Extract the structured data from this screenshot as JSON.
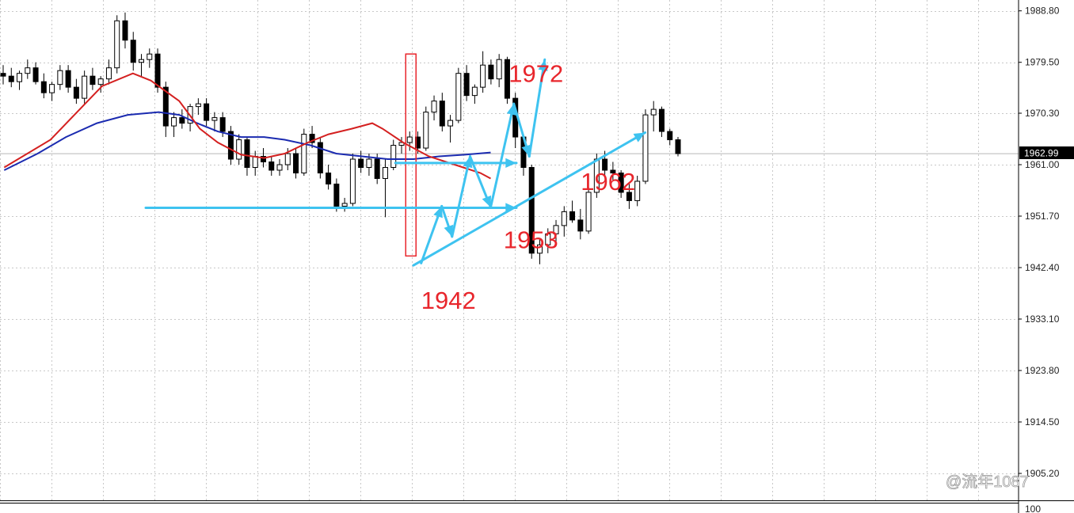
{
  "chart_data": {
    "type": "candlestick",
    "ylim": [
      1886,
      1993
    ],
    "y_ticks": [
      "1988.80",
      "1979.50",
      "1970.30",
      "1961.00",
      "1951.70",
      "1942.40",
      "1933.10",
      "1923.80",
      "1914.50",
      "1905.20"
    ],
    "current_price": "1962.99",
    "sub_panel_label": "100",
    "grid": true,
    "colors": {
      "candle": "#000000",
      "ma_fast": "#d42020",
      "ma_slow": "#1b2bb0",
      "annotation_line": "#3ec3f0",
      "annotation_text": "#e8262c",
      "box": "#e8262c",
      "grid": "#c8c8c8",
      "price_tag": "#000000"
    },
    "candles": [
      [
        1977.5,
        1979.0,
        1975.5,
        1977.0
      ],
      [
        1977.0,
        1978.5,
        1975.0,
        1976.0
      ],
      [
        1976.0,
        1978.0,
        1974.5,
        1977.5
      ],
      [
        1977.5,
        1980.0,
        1976.5,
        1978.5
      ],
      [
        1978.5,
        1979.5,
        1975.5,
        1976.0
      ],
      [
        1976.0,
        1977.5,
        1973.0,
        1974.0
      ],
      [
        1974.0,
        1976.0,
        1972.5,
        1975.5
      ],
      [
        1975.5,
        1979.0,
        1974.5,
        1978.0
      ],
      [
        1978.0,
        1979.0,
        1974.0,
        1975.0
      ],
      [
        1975.0,
        1976.5,
        1972.0,
        1973.0
      ],
      [
        1973.0,
        1978.0,
        1972.0,
        1977.0
      ],
      [
        1977.0,
        1978.5,
        1974.5,
        1975.5
      ],
      [
        1975.5,
        1977.0,
        1974.0,
        1976.5
      ],
      [
        1976.5,
        1980.0,
        1975.5,
        1978.5
      ],
      [
        1978.5,
        1988.0,
        1977.5,
        1987.0
      ],
      [
        1987.0,
        1988.5,
        1982.0,
        1983.5
      ],
      [
        1983.5,
        1985.0,
        1978.0,
        1979.5
      ],
      [
        1979.5,
        1981.0,
        1977.0,
        1980.0
      ],
      [
        1980.0,
        1982.0,
        1978.5,
        1981.0
      ],
      [
        1981.0,
        1982.0,
        1974.0,
        1975.0
      ],
      [
        1975.0,
        1976.0,
        1966.0,
        1968.0
      ],
      [
        1968.0,
        1970.5,
        1966.0,
        1969.5
      ],
      [
        1969.5,
        1971.0,
        1967.5,
        1968.5
      ],
      [
        1968.5,
        1972.0,
        1967.0,
        1971.5
      ],
      [
        1971.5,
        1973.0,
        1970.0,
        1972.0
      ],
      [
        1972.0,
        1973.0,
        1968.0,
        1969.0
      ],
      [
        1969.0,
        1970.5,
        1967.0,
        1969.5
      ],
      [
        1969.5,
        1970.5,
        1966.0,
        1967.0
      ],
      [
        1967.0,
        1968.0,
        1961.0,
        1962.0
      ],
      [
        1962.0,
        1966.5,
        1961.0,
        1965.5
      ],
      [
        1965.5,
        1966.0,
        1959.0,
        1960.5
      ],
      [
        1960.5,
        1963.5,
        1959.0,
        1962.5
      ],
      [
        1962.5,
        1964.0,
        1960.5,
        1961.5
      ],
      [
        1961.5,
        1962.5,
        1959.0,
        1960.0
      ],
      [
        1960.0,
        1962.0,
        1959.0,
        1961.0
      ],
      [
        1961.0,
        1964.0,
        1960.0,
        1963.0
      ],
      [
        1963.0,
        1964.0,
        1958.5,
        1959.5
      ],
      [
        1959.5,
        1967.5,
        1959.0,
        1966.5
      ],
      [
        1966.5,
        1968.0,
        1964.0,
        1965.0
      ],
      [
        1965.0,
        1966.0,
        1958.5,
        1959.5
      ],
      [
        1959.5,
        1961.0,
        1956.5,
        1957.5
      ],
      [
        1957.5,
        1958.5,
        1952.5,
        1953.5
      ],
      [
        1953.5,
        1955.0,
        1952.5,
        1954.0
      ],
      [
        1954.0,
        1963.0,
        1953.5,
        1962.0
      ],
      [
        1962.0,
        1963.5,
        1959.5,
        1960.5
      ],
      [
        1960.5,
        1963.0,
        1959.0,
        1962.0
      ],
      [
        1962.0,
        1963.0,
        1957.5,
        1958.5
      ],
      [
        1958.5,
        1962.0,
        1951.5,
        1960.5
      ],
      [
        1960.5,
        1965.5,
        1960.0,
        1964.5
      ],
      [
        1964.5,
        1966.0,
        1963.0,
        1965.0
      ],
      [
        1965.0,
        1967.0,
        1963.5,
        1966.0
      ],
      [
        1966.0,
        1967.0,
        1963.0,
        1964.0
      ],
      [
        1964.0,
        1971.5,
        1963.5,
        1970.5
      ],
      [
        1970.5,
        1973.5,
        1969.0,
        1972.5
      ],
      [
        1972.5,
        1974.0,
        1967.0,
        1968.0
      ],
      [
        1968.0,
        1970.0,
        1965.0,
        1969.0
      ],
      [
        1969.0,
        1978.5,
        1968.5,
        1977.5
      ],
      [
        1977.5,
        1979.0,
        1972.5,
        1973.5
      ],
      [
        1973.5,
        1975.5,
        1972.0,
        1975.0
      ],
      [
        1975.0,
        1981.5,
        1974.0,
        1979.0
      ],
      [
        1979.0,
        1980.0,
        1975.5,
        1976.5
      ],
      [
        1976.5,
        1981.0,
        1975.0,
        1980.0
      ],
      [
        1980.0,
        1980.5,
        1972.0,
        1973.0
      ],
      [
        1973.0,
        1974.0,
        1964.0,
        1966.0
      ],
      [
        1966.0,
        1966.5,
        1959.0,
        1960.5
      ],
      [
        1960.5,
        1961.0,
        1944.0,
        1945.0
      ],
      [
        1945.0,
        1947.5,
        1943.0,
        1946.5
      ],
      [
        1946.5,
        1949.5,
        1945.0,
        1948.5
      ],
      [
        1948.5,
        1951.0,
        1946.5,
        1950.0
      ],
      [
        1950.0,
        1953.5,
        1948.0,
        1952.5
      ],
      [
        1952.5,
        1954.5,
        1950.5,
        1951.0
      ],
      [
        1951.0,
        1953.0,
        1947.5,
        1949.0
      ],
      [
        1949.0,
        1957.0,
        1948.5,
        1956.0
      ],
      [
        1956.0,
        1963.0,
        1955.0,
        1962.0
      ],
      [
        1962.0,
        1963.5,
        1959.0,
        1960.0
      ],
      [
        1960.0,
        1961.5,
        1958.0,
        1959.5
      ],
      [
        1959.5,
        1960.0,
        1955.0,
        1956.0
      ],
      [
        1956.0,
        1957.5,
        1953.0,
        1954.5
      ],
      [
        1954.5,
        1959.0,
        1953.5,
        1958.0
      ],
      [
        1958.0,
        1971.0,
        1957.5,
        1970.0
      ],
      [
        1970.0,
        1972.5,
        1967.0,
        1971.0
      ],
      [
        1971.0,
        1971.5,
        1966.0,
        1967.0
      ],
      [
        1967.0,
        1967.5,
        1964.5,
        1965.5
      ],
      [
        1965.5,
        1966.0,
        1962.5,
        1963.0
      ]
    ],
    "ma_fast": [
      [
        1958.5,
        1960.5
      ],
      [
        1967.5,
        1965.5
      ],
      [
        1977.5,
        1975.2
      ],
      [
        1983.5,
        1977.5
      ],
      [
        1987.0,
        1976.2
      ],
      [
        1992.5,
        1972.5
      ],
      [
        1996.5,
        1967.5
      ],
      [
        2000.0,
        1965.0
      ],
      [
        2004.5,
        1962.8
      ],
      [
        2009.0,
        1962.2
      ],
      [
        2013.0,
        1963.0
      ],
      [
        2017.5,
        1965.0
      ],
      [
        2021.5,
        1966.5
      ],
      [
        2026.0,
        1967.5
      ],
      [
        2030.0,
        1968.5
      ],
      [
        2032.0,
        1967.5
      ],
      [
        2036.0,
        1965.0
      ],
      [
        2041.0,
        1962.5
      ],
      [
        2046.0,
        1961.0
      ],
      [
        2051.0,
        1959.5
      ],
      [
        2053.0,
        1958.5
      ]
    ],
    "ma_slow": [
      [
        1958.5,
        1960.0
      ],
      [
        1965.0,
        1963.0
      ],
      [
        1970.5,
        1966.0
      ],
      [
        1976.5,
        1968.5
      ],
      [
        1982.5,
        1970.0
      ],
      [
        1988.5,
        1970.5
      ],
      [
        1992.5,
        1970.0
      ],
      [
        1996.0,
        1968.5
      ],
      [
        2000.0,
        1967.0
      ],
      [
        2004.5,
        1966.0
      ],
      [
        2009.0,
        1966.0
      ],
      [
        2013.0,
        1965.5
      ],
      [
        2018.0,
        1964.5
      ],
      [
        2023.0,
        1963.0
      ],
      [
        2028.0,
        1962.5
      ],
      [
        2033.0,
        1962.0
      ],
      [
        2038.0,
        1962.0
      ],
      [
        2043.0,
        1962.5
      ],
      [
        2048.0,
        1962.8
      ],
      [
        2053.0,
        1963.2
      ]
    ],
    "horizontal_levels": [
      {
        "price": 1953.2,
        "from": 1986.0,
        "to": 2058.0
      },
      {
        "price": 1961.3,
        "from": 2034.5,
        "to": 2058.0
      }
    ],
    "trendline": [
      [
        2038.0,
        1942.8
      ],
      [
        2083.0,
        1966.8
      ]
    ],
    "zigzag": [
      [
        2039.5,
        1943.2
      ],
      [
        2043.5,
        1953.5
      ],
      [
        2045.5,
        1948.0
      ],
      [
        2049.0,
        1962.5
      ],
      [
        2053.0,
        1953.3
      ],
      [
        2057.5,
        1972.0
      ],
      [
        2060.5,
        1962.5
      ],
      [
        2063.5,
        1980.0
      ]
    ],
    "highlight_box": {
      "t_from": 2036.5,
      "t_to": 2038.5,
      "price_low": 1944.5,
      "price_high": 1981.0
    },
    "annotations": [
      {
        "text": "1972",
        "t": 2056.5,
        "price": 1977.5
      },
      {
        "text": "1962",
        "t": 2070.5,
        "price": 1958.0
      },
      {
        "text": "1953",
        "t": 2055.5,
        "price": 1947.5
      },
      {
        "text": "1942",
        "t": 2039.5,
        "price": 1936.5
      }
    ]
  },
  "watermark": "@流年1087"
}
